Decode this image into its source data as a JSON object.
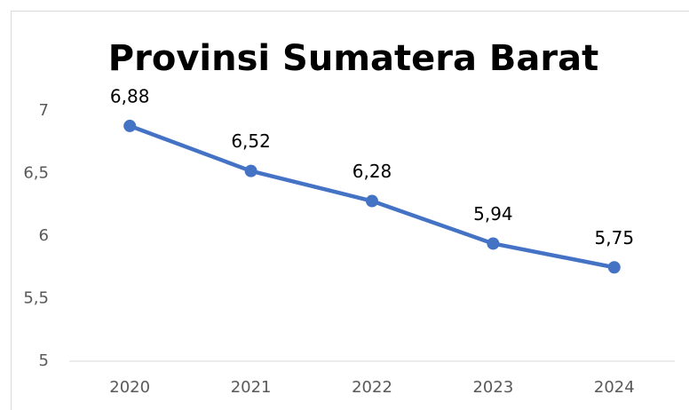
{
  "chart_data": {
    "type": "line",
    "title": "Provinsi Sumatera Barat",
    "categories": [
      "2020",
      "2021",
      "2022",
      "2023",
      "2024"
    ],
    "series": [
      {
        "name": "Provinsi Sumatera Barat",
        "color": "#4472c4",
        "values": [
          6.88,
          6.52,
          6.28,
          5.94,
          5.75
        ],
        "value_labels": [
          "6,88",
          "6,52",
          "6,28",
          "5,94",
          "5,75"
        ]
      }
    ],
    "ylim": [
      5,
      7
    ],
    "yticks": [
      5,
      {
        "value": 5.5,
        "label": "5,5"
      },
      6,
      {
        "value": 6.5,
        "label": "6,5"
      },
      7
    ],
    "grid": false
  }
}
